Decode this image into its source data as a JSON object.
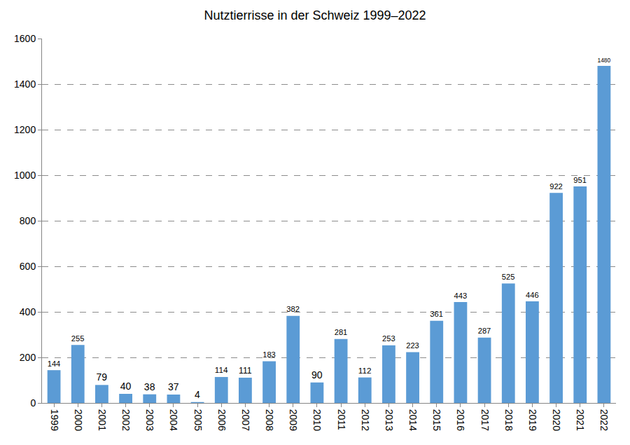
{
  "chart_data": {
    "type": "bar",
    "title": "Nutztierrisse in der Schweiz 1999–2022",
    "categories": [
      "1999",
      "2000",
      "2001",
      "2002",
      "2003",
      "2004",
      "2005",
      "2006",
      "2007",
      "2008",
      "2009",
      "2010",
      "2011",
      "2012",
      "2013",
      "2014",
      "2015",
      "2016",
      "2017",
      "2018",
      "2019",
      "2020",
      "2021",
      "2022"
    ],
    "values": [
      144,
      255,
      79,
      40,
      38,
      37,
      4,
      114,
      111,
      183,
      382,
      90,
      281,
      112,
      253,
      223,
      361,
      443,
      287,
      525,
      446,
      922,
      951,
      1480
    ],
    "color": "#5b9bd5",
    "ylim": [
      0,
      1600
    ],
    "yticks": [
      0,
      200,
      400,
      600,
      800,
      1000,
      1200,
      1400,
      1600
    ],
    "grid": true,
    "data_labels": true
  }
}
